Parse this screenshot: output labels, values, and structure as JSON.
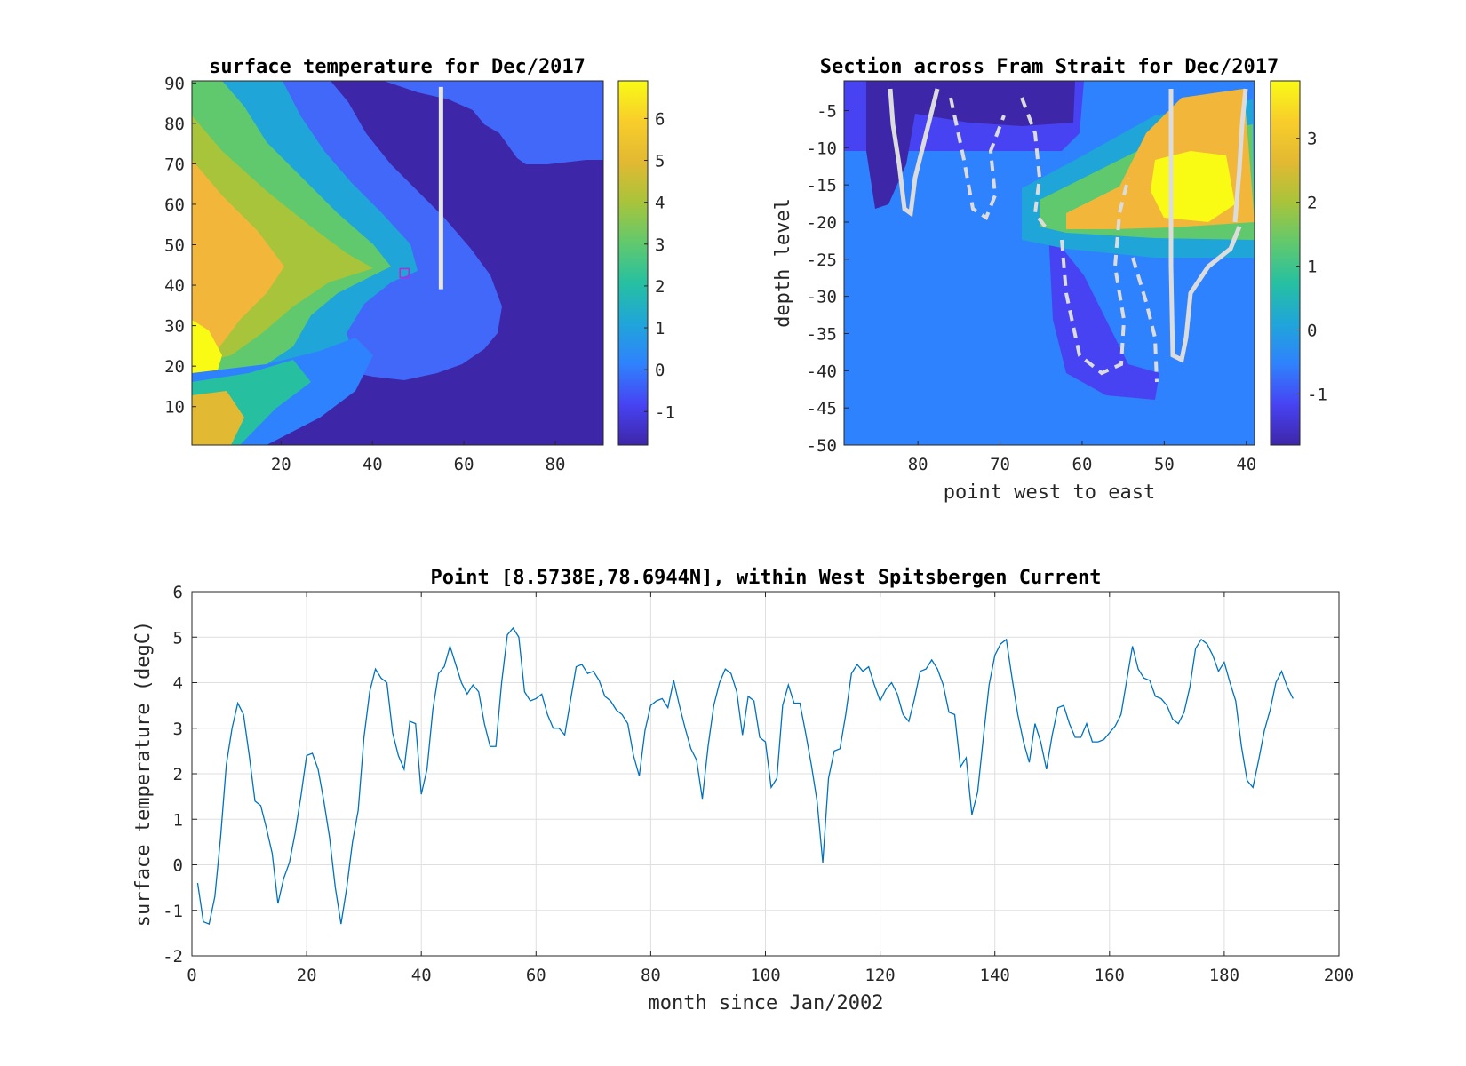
{
  "chart_data": [
    {
      "type": "heatmap",
      "title": "surface temperature for Dec/2017",
      "xlabel": "",
      "ylabel": "",
      "xlim": [
        0.5,
        90.5
      ],
      "ylim": [
        0.5,
        90.5
      ],
      "x_ticks": [
        20,
        40,
        60,
        80
      ],
      "y_ticks": [
        10,
        20,
        30,
        40,
        50,
        60,
        70,
        80,
        90
      ],
      "colorbar": {
        "range": [
          -1.8,
          6.9
        ],
        "ticks": [
          -1,
          0,
          1,
          2,
          3,
          4,
          5,
          6
        ]
      },
      "colormap": [
        "#3e26a8",
        "#4743f3",
        "#2f82fd",
        "#20a5d9",
        "#26c0a1",
        "#61c96d",
        "#a8c43b",
        "#e2b932",
        "#f8cd2b",
        "#f9fb15"
      ],
      "section_line": {
        "x": [
          55,
          55
        ],
        "y": [
          39,
          89
        ],
        "color": "#e6e6e6"
      },
      "marker": {
        "x": 47,
        "y": 43,
        "shape": "square",
        "color": "#c026d3"
      }
    },
    {
      "type": "heatmap",
      "title": "Section across Fram Strait for Dec/2017",
      "xlabel": "point west to east",
      "ylabel": "depth level",
      "xlim": [
        89,
        39
      ],
      "ylim": [
        -50,
        -1
      ],
      "x_ticks": [
        80,
        70,
        60,
        50,
        40
      ],
      "y_ticks": [
        -5,
        -10,
        -15,
        -20,
        -25,
        -30,
        -35,
        -40,
        -45,
        -50
      ],
      "colorbar": {
        "range": [
          -1.8,
          3.9
        ],
        "ticks": [
          -1,
          0,
          1,
          2,
          3
        ]
      },
      "contours": "white and grey dashed isolines"
    },
    {
      "type": "line",
      "title": "Point [8.5738E,78.6944N], within West Spitsbergen Current",
      "xlabel": "month since Jan/2002",
      "ylabel": "surface temperature (degC)",
      "xlim": [
        0,
        200
      ],
      "ylim": [
        -2,
        6
      ],
      "x_ticks": [
        0,
        20,
        40,
        60,
        80,
        100,
        120,
        140,
        160,
        180,
        200
      ],
      "y_ticks": [
        -2,
        -1,
        0,
        1,
        2,
        3,
        4,
        5,
        6
      ],
      "grid": true,
      "series": [
        {
          "color": "#0072bd",
          "x": [
            1,
            2,
            3,
            4,
            5,
            6,
            7,
            8,
            9,
            10,
            11,
            12,
            13,
            14,
            15,
            16,
            17,
            18,
            19,
            20,
            21,
            22,
            23,
            24,
            25,
            26,
            27,
            28,
            29,
            30,
            31,
            32,
            33,
            34,
            35,
            36,
            37,
            38,
            39,
            40,
            41,
            42,
            43,
            44,
            45,
            46,
            47,
            48,
            49,
            50,
            51,
            52,
            53,
            54,
            55,
            56,
            57,
            58,
            59,
            60,
            61,
            62,
            63,
            64,
            65,
            66,
            67,
            68,
            69,
            70,
            71,
            72,
            73,
            74,
            75,
            76,
            77,
            78,
            79,
            80,
            81,
            82,
            83,
            84,
            85,
            86,
            87,
            88,
            89,
            90,
            91,
            92,
            93,
            94,
            95,
            96,
            97,
            98,
            99,
            100,
            101,
            102,
            103,
            104,
            105,
            106,
            107,
            108,
            109,
            110,
            111,
            112,
            113,
            114,
            115,
            116,
            117,
            118,
            119,
            120,
            121,
            122,
            123,
            124,
            125,
            126,
            127,
            128,
            129,
            130,
            131,
            132,
            133,
            134,
            135,
            136,
            137,
            138,
            139,
            140,
            141,
            142,
            143,
            144,
            145,
            146,
            147,
            148,
            149,
            150,
            151,
            152,
            153,
            154,
            155,
            156,
            157,
            158,
            159,
            160,
            161,
            162,
            163,
            164,
            165,
            166,
            167,
            168,
            169,
            170,
            171,
            172,
            173,
            174,
            175,
            176,
            177,
            178,
            179,
            180,
            181,
            182,
            183,
            184,
            185,
            186,
            187,
            188,
            189,
            190,
            191,
            192
          ],
          "y": [
            -0.4,
            -1.25,
            -1.3,
            -0.7,
            0.6,
            2.2,
            3.0,
            3.55,
            3.3,
            2.4,
            1.4,
            1.3,
            0.8,
            0.25,
            -0.85,
            -0.3,
            0.05,
            0.7,
            1.5,
            2.4,
            2.45,
            2.1,
            1.4,
            0.6,
            -0.5,
            -1.3,
            -0.5,
            0.5,
            1.2,
            2.8,
            3.8,
            4.3,
            4.1,
            4.0,
            2.9,
            2.4,
            2.1,
            3.15,
            3.1,
            1.55,
            2.1,
            3.4,
            4.2,
            4.35,
            4.8,
            4.4,
            4.0,
            3.75,
            3.95,
            3.8,
            3.1,
            2.6,
            2.6,
            4.0,
            5.05,
            5.2,
            5.0,
            3.8,
            3.6,
            3.65,
            3.75,
            3.3,
            3.0,
            3.0,
            2.85,
            3.6,
            4.35,
            4.4,
            4.2,
            4.25,
            4.05,
            3.7,
            3.6,
            3.4,
            3.3,
            3.1,
            2.4,
            1.95,
            2.95,
            3.5,
            3.6,
            3.65,
            3.45,
            4.05,
            3.5,
            3.0,
            2.55,
            2.3,
            1.45,
            2.6,
            3.5,
            4.0,
            4.3,
            4.2,
            3.8,
            2.85,
            3.7,
            3.6,
            2.8,
            2.7,
            1.7,
            1.9,
            3.5,
            3.95,
            3.55,
            3.55,
            2.9,
            2.2,
            1.4,
            0.05,
            1.9,
            2.5,
            2.55,
            3.3,
            4.2,
            4.4,
            4.25,
            4.35,
            3.95,
            3.6,
            3.85,
            4.0,
            3.75,
            3.3,
            3.15,
            3.65,
            4.25,
            4.3,
            4.5,
            4.3,
            3.95,
            3.35,
            3.3,
            2.15,
            2.35,
            1.1,
            1.6,
            2.8,
            3.95,
            4.6,
            4.85,
            4.95,
            4.1,
            3.3,
            2.7,
            2.25,
            3.1,
            2.7,
            2.1,
            2.85,
            3.45,
            3.5,
            3.1,
            2.8,
            2.8,
            3.1,
            2.7,
            2.7,
            2.75,
            2.9,
            3.05,
            3.3,
            4.05,
            4.8,
            4.3,
            4.1,
            4.05,
            3.7,
            3.65,
            3.5,
            3.2,
            3.1,
            3.35,
            3.9,
            4.75,
            4.95,
            4.85,
            4.6,
            4.25,
            4.45,
            4.0,
            3.6,
            2.6,
            1.85,
            1.7,
            2.3,
            2.95,
            3.4,
            4.0,
            4.25,
            3.9,
            3.65
          ]
        }
      ]
    }
  ]
}
